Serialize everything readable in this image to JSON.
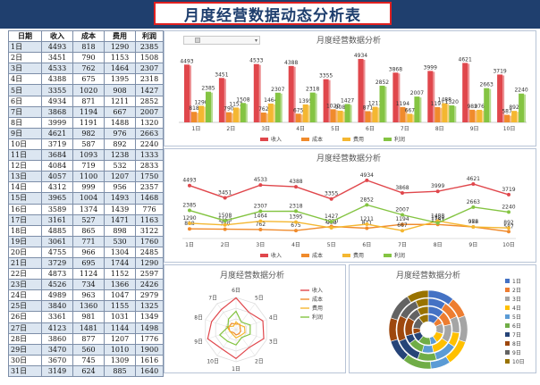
{
  "title": "月度经营数据动态分析表",
  "table": {
    "headers": [
      "日期",
      "收入",
      "成本",
      "费用",
      "利润"
    ],
    "rows": [
      [
        "1日",
        "4493",
        "818",
        "1290",
        "2385"
      ],
      [
        "2日",
        "3451",
        "790",
        "1153",
        "1508"
      ],
      [
        "3日",
        "4533",
        "762",
        "1464",
        "2307"
      ],
      [
        "4日",
        "4388",
        "675",
        "1395",
        "2318"
      ],
      [
        "5日",
        "3355",
        "1020",
        "908",
        "1427"
      ],
      [
        "6日",
        "4934",
        "871",
        "1211",
        "2852"
      ],
      [
        "7日",
        "3868",
        "1194",
        "667",
        "2007"
      ],
      [
        "8日",
        "3999",
        "1191",
        "1488",
        "1320"
      ],
      [
        "9日",
        "4621",
        "982",
        "976",
        "2663"
      ],
      [
        "10日",
        "3719",
        "587",
        "892",
        "2240"
      ],
      [
        "11日",
        "3684",
        "1093",
        "1238",
        "1333"
      ],
      [
        "12日",
        "4084",
        "719",
        "532",
        "2833"
      ],
      [
        "13日",
        "4057",
        "1100",
        "1207",
        "1750"
      ],
      [
        "14日",
        "4312",
        "999",
        "956",
        "2357"
      ],
      [
        "15日",
        "3965",
        "1004",
        "1493",
        "1468"
      ],
      [
        "16日",
        "3589",
        "1374",
        "1439",
        "776"
      ],
      [
        "17日",
        "3161",
        "527",
        "1471",
        "1163"
      ],
      [
        "18日",
        "4885",
        "865",
        "898",
        "3122"
      ],
      [
        "19日",
        "3061",
        "771",
        "530",
        "1760"
      ],
      [
        "20日",
        "4755",
        "966",
        "1304",
        "2485"
      ],
      [
        "21日",
        "3729",
        "695",
        "1744",
        "1290"
      ],
      [
        "22日",
        "4873",
        "1124",
        "1152",
        "2597"
      ],
      [
        "23日",
        "4526",
        "734",
        "1366",
        "2426"
      ],
      [
        "24日",
        "4989",
        "963",
        "1047",
        "2979"
      ],
      [
        "25日",
        "3840",
        "1360",
        "1155",
        "1325"
      ],
      [
        "26日",
        "3361",
        "981",
        "1031",
        "1349"
      ],
      [
        "27日",
        "4123",
        "1481",
        "1144",
        "1498"
      ],
      [
        "28日",
        "3860",
        "877",
        "1207",
        "1776"
      ],
      [
        "29日",
        "3470",
        "560",
        "1010",
        "1900"
      ],
      [
        "30日",
        "3670",
        "745",
        "1309",
        "1616"
      ],
      [
        "31日",
        "3149",
        "624",
        "885",
        "1640"
      ]
    ]
  },
  "colors": {
    "income": "#e0474c",
    "cost": "#f08b2c",
    "expense": "#f4b731",
    "profit": "#84c442",
    "header_bg": "#1f3f6e",
    "title_border": "#e02020"
  },
  "chart_data": [
    {
      "type": "bar",
      "title": "月度经营数据分析",
      "categories": [
        "1日",
        "2日",
        "3日",
        "4日",
        "5日",
        "6日",
        "7日",
        "8日",
        "9日",
        "10日"
      ],
      "series": [
        {
          "name": "收入",
          "values": [
            4493,
            3451,
            4533,
            4388,
            3355,
            4934,
            3868,
            3999,
            4621,
            3719
          ]
        },
        {
          "name": "成本",
          "values": [
            818,
            790,
            762,
            675,
            1020,
            871,
            1194,
            1191,
            982,
            587
          ]
        },
        {
          "name": "费用",
          "values": [
            1290,
            1153,
            1464,
            1395,
            908,
            1211,
            667,
            1488,
            976,
            892
          ]
        },
        {
          "name": "利润",
          "values": [
            2385,
            1508,
            2307,
            2318,
            1427,
            2852,
            2007,
            1320,
            2663,
            2240
          ]
        }
      ],
      "ylim": [
        0,
        5000
      ],
      "legend": "bottom"
    },
    {
      "type": "line",
      "title": "月度经营数据分析",
      "categories": [
        "1日",
        "2日",
        "3日",
        "4日",
        "5日",
        "6日",
        "7日",
        "8日",
        "9日",
        "10日"
      ],
      "series": [
        {
          "name": "收入",
          "values": [
            4493,
            3451,
            4533,
            4388,
            3355,
            4934,
            3868,
            3999,
            4621,
            3719
          ]
        },
        {
          "name": "成本",
          "values": [
            818,
            790,
            762,
            675,
            1020,
            871,
            1194,
            1191,
            982,
            587
          ]
        },
        {
          "name": "费用",
          "values": [
            1290,
            1153,
            1464,
            1395,
            908,
            1211,
            667,
            1488,
            976,
            892
          ]
        },
        {
          "name": "利润",
          "values": [
            2385,
            1508,
            2307,
            2318,
            1427,
            2852,
            2007,
            1320,
            2663,
            2240
          ]
        }
      ],
      "ylim": [
        0,
        5000
      ],
      "legend": "bottom"
    },
    {
      "type": "radar",
      "title": "月度经营数据分析",
      "categories": [
        "1日",
        "2日",
        "3日",
        "4日",
        "5日",
        "6日",
        "7日",
        "8日",
        "9日",
        "10日"
      ],
      "series": [
        {
          "name": "收入",
          "values": [
            4493,
            3451,
            4533,
            4388,
            3355,
            4934,
            3868,
            3999,
            4621,
            3719
          ]
        },
        {
          "name": "成本",
          "values": [
            818,
            790,
            762,
            675,
            1020,
            871,
            1194,
            1191,
            982,
            587
          ]
        },
        {
          "name": "费用",
          "values": [
            1290,
            1153,
            1464,
            1395,
            908,
            1211,
            667,
            1488,
            976,
            892
          ]
        },
        {
          "name": "利润",
          "values": [
            2385,
            1508,
            2307,
            2318,
            1427,
            2852,
            2007,
            1320,
            2663,
            2240
          ]
        }
      ],
      "legend": "right"
    },
    {
      "type": "donut",
      "title": "月度经营数据分析",
      "categories": [
        "1日",
        "2日",
        "3日",
        "4日",
        "5日",
        "6日",
        "7日",
        "8日",
        "9日",
        "10日"
      ],
      "series": [
        {
          "name": "收入",
          "values": [
            4493,
            3451,
            4533,
            4388,
            3355,
            4934,
            3868,
            3999,
            4621,
            3719
          ]
        },
        {
          "name": "成本",
          "values": [
            818,
            790,
            762,
            675,
            1020,
            871,
            1194,
            1191,
            982,
            587
          ]
        },
        {
          "name": "费用",
          "values": [
            1290,
            1153,
            1464,
            1395,
            908,
            1211,
            667,
            1488,
            976,
            892
          ]
        },
        {
          "name": "利润",
          "values": [
            2385,
            1508,
            2307,
            2318,
            1427,
            2852,
            2007,
            1320,
            2663,
            2240
          ]
        }
      ],
      "slice_colors": [
        "#4472c4",
        "#ed7d31",
        "#a5a5a5",
        "#ffc000",
        "#5b9bd5",
        "#70ad47",
        "#264478",
        "#9e480e",
        "#636363",
        "#997300"
      ],
      "legend": "right"
    }
  ]
}
